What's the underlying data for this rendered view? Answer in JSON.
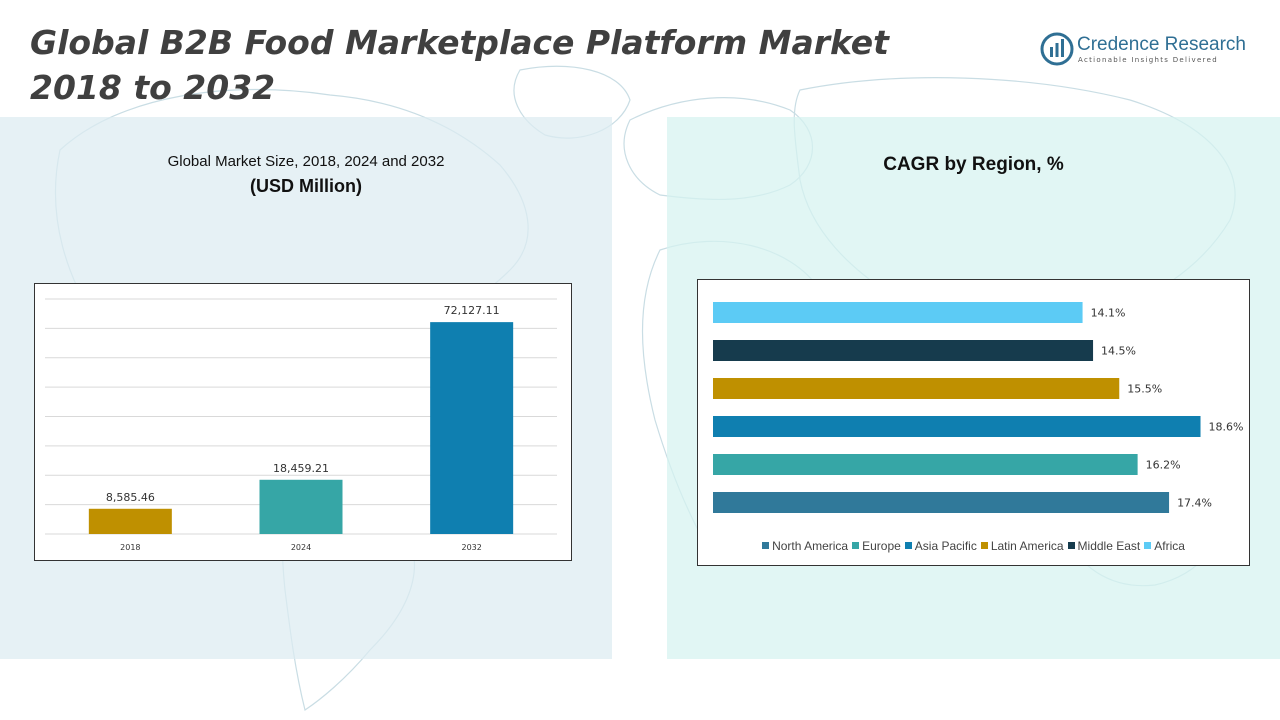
{
  "page": {
    "title_line1": "Global B2B Food Marketplace Platform Market",
    "title_line2": "2018 to 2032"
  },
  "logo": {
    "name": "Credence Research",
    "tagline": "Actionable Insights Delivered"
  },
  "left_panel": {
    "heading": "Global Market Size, 2018, 2024 and 2032",
    "subheading": "(USD Million)"
  },
  "right_panel": {
    "heading": "CAGR by Region, %"
  },
  "chart_data": [
    {
      "type": "bar",
      "categories": [
        "2018",
        "2024",
        "2032"
      ],
      "values": [
        8585.46,
        18459.21,
        72127.11
      ],
      "value_labels": [
        "8,585.46",
        "18,459.21",
        "72,127.11"
      ],
      "colors": [
        "#bf9000",
        "#36a6a6",
        "#0f7fb0"
      ],
      "ylim": [
        0,
        80000
      ],
      "grid": true
    },
    {
      "type": "bar",
      "orientation": "horizontal",
      "categories": [
        "North America",
        "Europe",
        "Asia Pacific",
        "Latin America",
        "Middle East",
        "Africa"
      ],
      "values": [
        17.4,
        16.2,
        18.6,
        15.5,
        14.5,
        14.1
      ],
      "value_labels": [
        "17.4%",
        "16.2%",
        "18.6%",
        "15.5%",
        "14.5%",
        "14.1%"
      ],
      "colors": [
        "#30799a",
        "#36a6a6",
        "#0f7fb0",
        "#bf9000",
        "#163b4d",
        "#5ccbf5"
      ],
      "xlim": [
        0,
        19
      ],
      "legend": "bottom",
      "grid": false
    }
  ]
}
